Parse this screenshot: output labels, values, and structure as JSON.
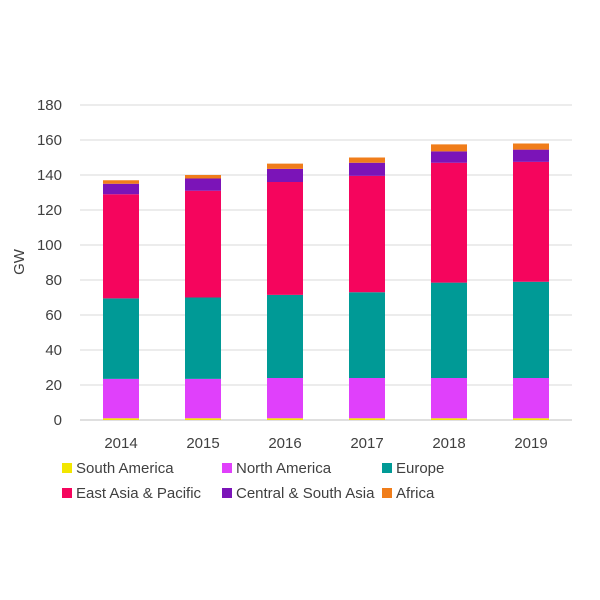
{
  "chart_data": {
    "type": "bar",
    "stacked": true,
    "title": "",
    "xlabel": "",
    "ylabel": "GW",
    "ylim": [
      0,
      180
    ],
    "yticks": [
      "0",
      "20",
      "40",
      "60",
      "80",
      "100",
      "120",
      "140",
      "160",
      "180"
    ],
    "categories": [
      "2014",
      "2015",
      "2016",
      "2017",
      "2018",
      "2019"
    ],
    "grid": true,
    "legend_position": "bottom",
    "series": [
      {
        "name": "South America",
        "color": "#f2e600",
        "values": [
          1,
          1,
          1,
          1,
          1,
          1
        ]
      },
      {
        "name": "North America",
        "color": "#e040fb",
        "values": [
          22.5,
          22.5,
          23,
          23,
          23,
          23
        ]
      },
      {
        "name": "Europe",
        "color": "#009a96",
        "values": [
          46,
          46.5,
          47.5,
          49,
          54.5,
          55
        ]
      },
      {
        "name": "East Asia & Pacific",
        "color": "#f5055d",
        "values": [
          59.5,
          61,
          64.5,
          66.5,
          68.5,
          68.5
        ]
      },
      {
        "name": "Central & South Asia",
        "color": "#7b14b8",
        "values": [
          6,
          7,
          7.5,
          7.5,
          6.5,
          7
        ]
      },
      {
        "name": "Africa",
        "color": "#f07d1a",
        "values": [
          2,
          2,
          3,
          3,
          4,
          3.5
        ]
      }
    ]
  }
}
